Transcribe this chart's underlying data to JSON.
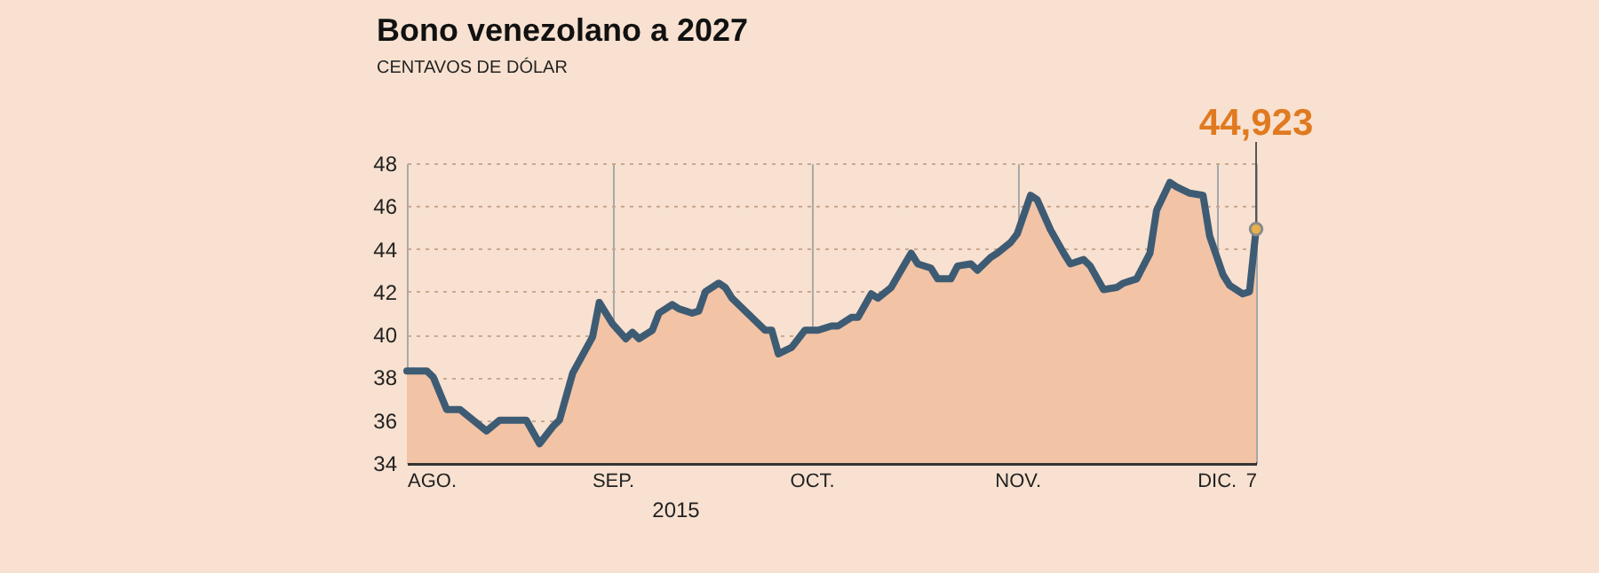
{
  "chart_data": {
    "type": "area",
    "title": "Bono venezolano a 2027",
    "subtitle": "CENTAVOS DE DÓLAR",
    "xlabel": "2015",
    "x": [
      "2015-08-01",
      "2015-08-04",
      "2015-08-05",
      "2015-08-07",
      "2015-08-09",
      "2015-08-13",
      "2015-08-15",
      "2015-08-19",
      "2015-08-21",
      "2015-08-23",
      "2015-08-24",
      "2015-08-26",
      "2015-08-29",
      "2015-08-30",
      "2015-09-01",
      "2015-09-03",
      "2015-09-04",
      "2015-09-05",
      "2015-09-07",
      "2015-09-08",
      "2015-09-10",
      "2015-09-11",
      "2015-09-13",
      "2015-09-14",
      "2015-09-15",
      "2015-09-17",
      "2015-09-18",
      "2015-09-19",
      "2015-09-21",
      "2015-09-22",
      "2015-09-24",
      "2015-09-25",
      "2015-09-26",
      "2015-09-28",
      "2015-09-29",
      "2015-09-30",
      "2015-10-02",
      "2015-10-04",
      "2015-10-05",
      "2015-10-07",
      "2015-10-08",
      "2015-10-10",
      "2015-10-11",
      "2015-10-13",
      "2015-10-16",
      "2015-10-17",
      "2015-10-19",
      "2015-10-20",
      "2015-10-22",
      "2015-10-23",
      "2015-10-25",
      "2015-10-26",
      "2015-10-28",
      "2015-10-29",
      "2015-10-31",
      "2015-11-01",
      "2015-11-03",
      "2015-11-04",
      "2015-11-06",
      "2015-11-08",
      "2015-11-09",
      "2015-11-11",
      "2015-11-12",
      "2015-11-14",
      "2015-11-16",
      "2015-11-17",
      "2015-11-19",
      "2015-11-21",
      "2015-11-22",
      "2015-11-24",
      "2015-11-25",
      "2015-11-27",
      "2015-11-29",
      "2015-11-30",
      "2015-12-02",
      "2015-12-03",
      "2015-12-05",
      "2015-12-06",
      "2015-12-07"
    ],
    "series": [
      {
        "color": "#f2c3a5",
        "values": [
          38.3,
          38.3,
          38.0,
          36.5,
          36.5,
          35.5,
          36.0,
          36.0,
          34.9,
          35.7,
          36.0,
          38.2,
          39.9,
          41.5,
          40.5,
          39.8,
          40.1,
          39.8,
          40.2,
          41.0,
          41.4,
          41.2,
          41.0,
          41.1,
          42.0,
          42.4,
          42.2,
          41.7,
          41.1,
          40.8,
          40.2,
          40.2,
          39.1,
          39.4,
          39.8,
          40.2,
          40.2,
          40.4,
          40.4,
          40.8,
          40.8,
          41.9,
          41.7,
          42.2,
          43.8,
          43.3,
          43.1,
          42.6,
          42.6,
          43.2,
          43.3,
          43.0,
          43.6,
          43.8,
          44.3,
          44.7,
          46.5,
          46.3,
          44.9,
          43.8,
          43.3,
          43.5,
          43.2,
          42.1,
          42.2,
          42.4,
          42.6,
          43.8,
          45.8,
          47.1,
          46.9,
          46.6,
          46.5,
          44.6,
          42.8,
          42.3,
          41.9,
          42.0,
          44.923
        ]
      },
      {
        "type": "line",
        "color": "#3e5b74",
        "values": [
          38.3,
          38.3,
          38.0,
          36.5,
          36.5,
          35.5,
          36.0,
          36.0,
          34.9,
          35.7,
          36.0,
          38.2,
          39.9,
          41.5,
          40.5,
          39.8,
          40.1,
          39.8,
          40.2,
          41.0,
          41.4,
          41.2,
          41.0,
          41.1,
          42.0,
          42.4,
          42.2,
          41.7,
          41.1,
          40.8,
          40.2,
          40.2,
          39.1,
          39.4,
          39.8,
          40.2,
          40.2,
          40.4,
          40.4,
          40.8,
          40.8,
          41.9,
          41.7,
          42.2,
          43.8,
          43.3,
          43.1,
          42.6,
          42.6,
          43.2,
          43.3,
          43.0,
          43.6,
          43.8,
          44.3,
          44.7,
          46.5,
          46.3,
          44.9,
          43.8,
          43.3,
          43.5,
          43.2,
          42.1,
          42.2,
          42.4,
          42.6,
          43.8,
          45.8,
          47.1,
          46.9,
          46.6,
          46.5,
          44.6,
          42.8,
          42.3,
          41.9,
          42.0,
          44.923
        ]
      }
    ],
    "xlim": [
      "2015-08-01",
      "2015-12-07"
    ],
    "xticks": [
      {
        "value": "2015-08-01",
        "label": "AGO."
      },
      {
        "value": "2015-09-01",
        "label": "SEP."
      },
      {
        "value": "2015-10-01",
        "label": "OCT."
      },
      {
        "value": "2015-11-01",
        "label": "NOV."
      },
      {
        "value": "2015-12-01",
        "label": "DIC."
      },
      {
        "value": "2015-12-07",
        "label": "7"
      }
    ],
    "ylim": [
      34,
      48
    ],
    "yticks": [
      34,
      36,
      38,
      40,
      42,
      44,
      46,
      48
    ],
    "grid": true,
    "line_style": "solid",
    "annotations": [
      {
        "text": "44,923",
        "x": "2015-12-07",
        "y": 44.923
      }
    ]
  }
}
